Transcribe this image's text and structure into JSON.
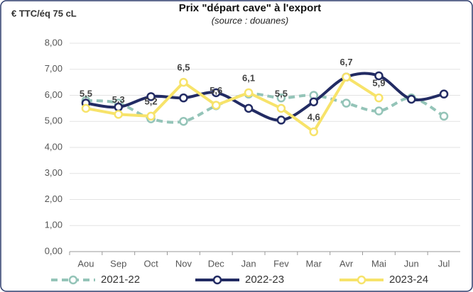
{
  "chart_data": {
    "type": "line",
    "title": "Prix \"départ cave\" à l'export",
    "subtitle": "(source : douanes)",
    "y_label": "€ TTC/éq 75 cL",
    "categories": [
      "Aou",
      "Sep",
      "Oct",
      "Nov",
      "Dec",
      "Jan",
      "Fev",
      "Mar",
      "Avr",
      "Mai",
      "Jun",
      "Jul"
    ],
    "series": [
      {
        "name": "2021-22",
        "color": "#94c4b8",
        "line_style": "dashed",
        "smooth": true,
        "values": [
          5.8,
          5.7,
          5.1,
          5.0,
          5.6,
          6.05,
          5.9,
          6.0,
          5.7,
          5.4,
          5.9,
          5.2
        ]
      },
      {
        "name": "2022-23",
        "color": "#222b63",
        "line_style": "solid",
        "smooth": true,
        "values": [
          5.7,
          5.55,
          5.95,
          5.9,
          6.1,
          5.5,
          5.05,
          5.75,
          6.7,
          6.75,
          5.85,
          6.05
        ]
      },
      {
        "name": "2023-24",
        "color": "#f7e36a",
        "line_style": "solid",
        "smooth": false,
        "values": [
          5.5,
          5.27,
          5.2,
          6.5,
          5.62,
          6.1,
          5.5,
          4.6,
          6.7,
          5.9,
          null,
          null
        ],
        "value_labels": [
          "5,5",
          "5,3",
          "5,2",
          "6,5",
          "5,6",
          "6,1",
          "5,5",
          "4,6",
          "6,7",
          "5,9",
          null,
          null
        ]
      }
    ],
    "ylim": [
      0,
      8
    ],
    "yticks": [
      {
        "value": 0,
        "label": "0,00"
      },
      {
        "value": 1,
        "label": "1,00"
      },
      {
        "value": 2,
        "label": "2,00"
      },
      {
        "value": 3,
        "label": "3,00"
      },
      {
        "value": 4,
        "label": "4,00"
      },
      {
        "value": 5,
        "label": "5,00"
      },
      {
        "value": 6,
        "label": "6,00"
      },
      {
        "value": 7,
        "label": "7,00"
      },
      {
        "value": 8,
        "label": "8,00"
      }
    ],
    "grid": true,
    "legend": "bottom"
  }
}
